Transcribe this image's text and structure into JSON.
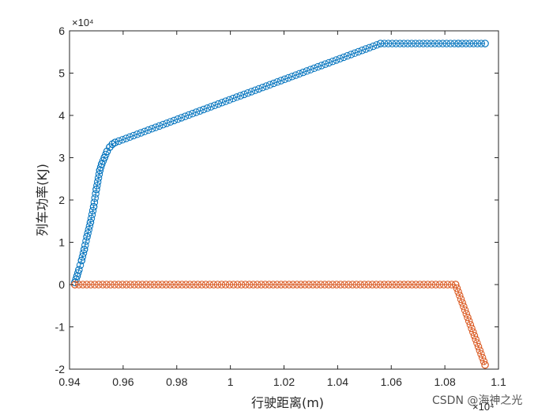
{
  "chart_data": {
    "type": "line",
    "xlabel": "行驶距离(m)",
    "ylabel": "列车功率(KJ)",
    "x_exponent": "×10⁴",
    "y_exponent": "×10⁴",
    "xlim": [
      0.94,
      1.1
    ],
    "ylim": [
      -2,
      6
    ],
    "x_ticks": [
      "0.94",
      "0.96",
      "0.98",
      "1",
      "1.02",
      "1.04",
      "1.06",
      "1.08",
      "1.1"
    ],
    "y_ticks": [
      "-2",
      "-1",
      "0",
      "1",
      "2",
      "3",
      "4",
      "5",
      "6"
    ],
    "grid": false,
    "legend": false,
    "series": [
      {
        "color": "#0072BD",
        "marker": "circle",
        "points": [
          [
            0.942,
            0.05
          ],
          [
            0.9428,
            0.2
          ],
          [
            0.9435,
            0.35
          ],
          [
            0.9445,
            0.57
          ],
          [
            0.9455,
            0.83
          ],
          [
            0.9465,
            1.13
          ],
          [
            0.9478,
            1.47
          ],
          [
            0.949,
            1.84
          ],
          [
            0.95,
            2.25
          ],
          [
            0.9513,
            2.7
          ],
          [
            0.952,
            2.85
          ],
          [
            0.953,
            3.0
          ],
          [
            0.954,
            3.15
          ],
          [
            0.955,
            3.25
          ],
          [
            0.956,
            3.32
          ],
          [
            0.957,
            3.36
          ],
          [
            1.056,
            5.7
          ],
          [
            1.085,
            5.7
          ],
          [
            1.095,
            5.7
          ]
        ]
      },
      {
        "color": "#D95319",
        "marker": "circle",
        "points": [
          [
            0.942,
            0.0
          ],
          [
            1.084,
            0.0
          ],
          [
            1.095,
            -1.9
          ]
        ]
      }
    ]
  },
  "watermark": "CSDN @海神之光"
}
